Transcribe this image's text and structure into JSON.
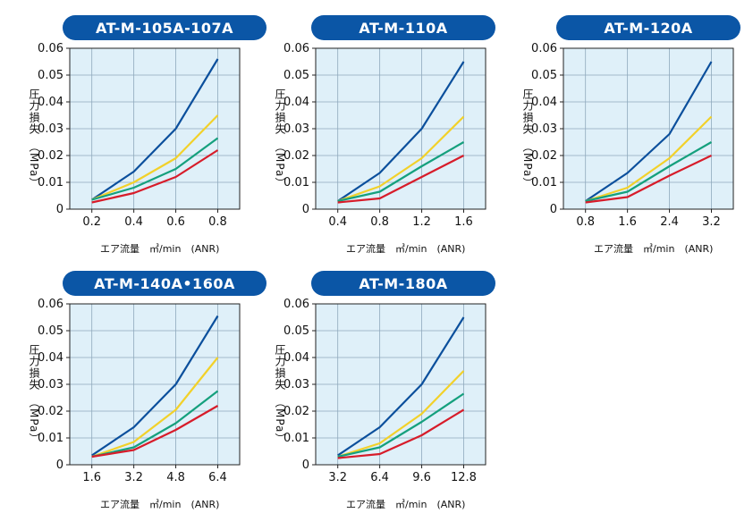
{
  "colors": {
    "bg": "#dff0f9",
    "grid": "#8fa9bd",
    "axis": "#222222",
    "title_bg": "#0b56a6",
    "series": [
      "#0b4f9c",
      "#f2d12a",
      "#15a07d",
      "#d71c2a"
    ]
  },
  "chart_data": [
    {
      "type": "line",
      "title": "AT-M-105A-107A",
      "ylabel": "圧力損失　（MPa）",
      "xlabel": "エア流量　㎥/min　(ANR)",
      "x": [
        "0.2",
        "0.4",
        "0.6",
        "0.8"
      ],
      "yticks": [
        "0",
        "0.01",
        "0.02",
        "0.03",
        "0.04",
        "0.05",
        "0.06"
      ],
      "ylim": [
        0,
        0.06
      ],
      "series": [
        {
          "values": [
            0.0035,
            0.014,
            0.03,
            0.056
          ]
        },
        {
          "values": [
            0.0035,
            0.01,
            0.019,
            0.035
          ]
        },
        {
          "values": [
            0.0035,
            0.008,
            0.015,
            0.0265
          ]
        },
        {
          "values": [
            0.0025,
            0.006,
            0.012,
            0.022
          ]
        }
      ]
    },
    {
      "type": "line",
      "title": "AT-M-110A",
      "ylabel": "圧力損失　（MPa）",
      "xlabel": "エア流量　㎥/min　(ANR)",
      "x": [
        "0.4",
        "0.8",
        "1.2",
        "1.6"
      ],
      "yticks": [
        "0",
        "0.01",
        "0.02",
        "0.03",
        "0.04",
        "0.05",
        "0.06"
      ],
      "ylim": [
        0,
        0.06
      ],
      "series": [
        {
          "values": [
            0.003,
            0.0135,
            0.03,
            0.055
          ]
        },
        {
          "values": [
            0.003,
            0.0085,
            0.019,
            0.0345
          ]
        },
        {
          "values": [
            0.003,
            0.0065,
            0.016,
            0.025
          ]
        },
        {
          "values": [
            0.0025,
            0.004,
            0.012,
            0.02
          ]
        }
      ]
    },
    {
      "type": "line",
      "title": "AT-M-120A",
      "ylabel": "圧力損失　（MPa）",
      "xlabel": "エア流量　㎥/min　(ANR)",
      "x": [
        "0.8",
        "1.6",
        "2.4",
        "3.2"
      ],
      "yticks": [
        "0",
        "0.01",
        "0.02",
        "0.03",
        "0.04",
        "0.05",
        "0.06"
      ],
      "ylim": [
        0,
        0.06
      ],
      "series": [
        {
          "values": [
            0.003,
            0.0135,
            0.028,
            0.055
          ]
        },
        {
          "values": [
            0.003,
            0.008,
            0.019,
            0.0345
          ]
        },
        {
          "values": [
            0.003,
            0.0065,
            0.016,
            0.025
          ]
        },
        {
          "values": [
            0.0025,
            0.0045,
            0.0125,
            0.02
          ]
        }
      ]
    },
    {
      "type": "line",
      "title": "AT-M-140A•160A",
      "ylabel": "圧力損失　（MPa）",
      "xlabel": "エア流量　㎥/min　(ANR)",
      "x": [
        "1.6",
        "3.2",
        "4.8",
        "6.4"
      ],
      "yticks": [
        "0",
        "0.01",
        "0.02",
        "0.03",
        "0.04",
        "0.05",
        "0.06"
      ],
      "ylim": [
        0,
        0.06
      ],
      "series": [
        {
          "values": [
            0.0035,
            0.014,
            0.03,
            0.0555
          ]
        },
        {
          "values": [
            0.003,
            0.0085,
            0.0205,
            0.04
          ]
        },
        {
          "values": [
            0.003,
            0.0065,
            0.0155,
            0.0275
          ]
        },
        {
          "values": [
            0.003,
            0.0055,
            0.013,
            0.022
          ]
        }
      ]
    },
    {
      "type": "line",
      "title": "AT-M-180A",
      "ylabel": "圧力損失　（MPa）",
      "xlabel": "エア流量　㎥/min　(ANR)",
      "x": [
        "3.2",
        "6.4",
        "9.6",
        "12.8"
      ],
      "yticks": [
        "0",
        "0.01",
        "0.02",
        "0.03",
        "0.04",
        "0.05",
        "0.06"
      ],
      "ylim": [
        0,
        0.06
      ],
      "series": [
        {
          "values": [
            0.0035,
            0.014,
            0.03,
            0.055
          ]
        },
        {
          "values": [
            0.003,
            0.008,
            0.019,
            0.035
          ]
        },
        {
          "values": [
            0.003,
            0.0065,
            0.016,
            0.0265
          ]
        },
        {
          "values": [
            0.0025,
            0.004,
            0.011,
            0.0205
          ]
        }
      ]
    }
  ]
}
